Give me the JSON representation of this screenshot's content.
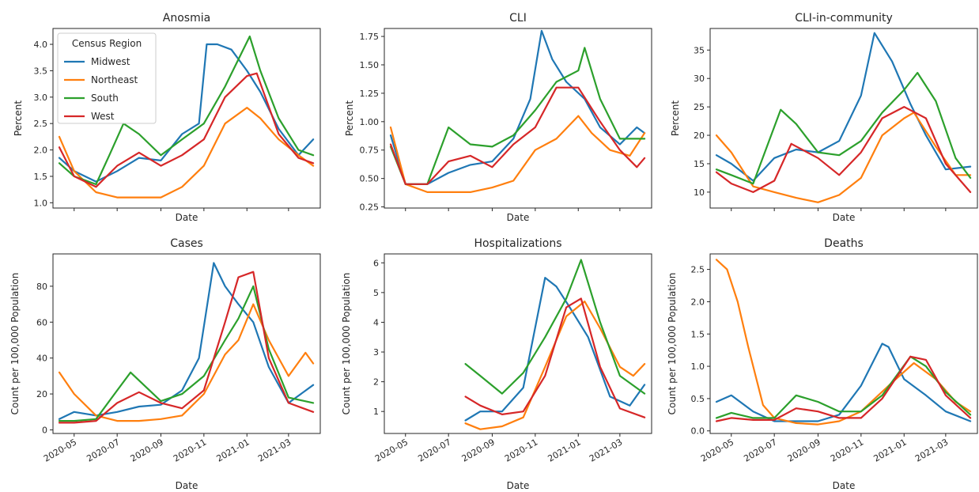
{
  "colors": {
    "Midwest": "#1f77b4",
    "Northeast": "#ff7f0e",
    "South": "#2ca02c",
    "West": "#d62728"
  },
  "legend": {
    "title": "Census Region",
    "placement": "upper-left of first panel",
    "entries": [
      "Midwest",
      "Northeast",
      "South",
      "West"
    ]
  },
  "x_ticks": [
    "2020-05",
    "2020-07",
    "2020-09",
    "2020-11",
    "2021-01",
    "2021-03"
  ],
  "chart_data": [
    {
      "type": "line",
      "title": "Anosmia",
      "xlabel": "Date",
      "ylabel": "Percent",
      "ylim": [
        0.9,
        4.3
      ],
      "yticks": [
        1.0,
        1.5,
        2.0,
        2.5,
        3.0,
        3.5,
        4.0
      ],
      "xlim": [
        "2020-04-01",
        "2021-04-15"
      ],
      "show_xticklabels": false,
      "grid": false,
      "series": [
        {
          "name": "Midwest",
          "x": [
            "2020-04-10",
            "2020-05-01",
            "2020-06-01",
            "2020-07-01",
            "2020-08-01",
            "2020-09-01",
            "2020-10-01",
            "2020-10-25",
            "2020-11-05",
            "2020-11-20",
            "2020-12-10",
            "2021-01-01",
            "2021-01-20",
            "2021-02-15",
            "2021-03-15",
            "2021-04-05"
          ],
          "values": [
            1.85,
            1.6,
            1.4,
            1.6,
            1.85,
            1.8,
            2.3,
            2.5,
            4.0,
            4.0,
            3.9,
            3.5,
            3.1,
            2.4,
            1.9,
            2.2
          ]
        },
        {
          "name": "Northeast",
          "x": [
            "2020-04-10",
            "2020-05-01",
            "2020-06-01",
            "2020-07-01",
            "2020-08-01",
            "2020-09-01",
            "2020-10-01",
            "2020-11-01",
            "2020-12-01",
            "2021-01-01",
            "2021-01-20",
            "2021-02-15",
            "2021-03-15",
            "2021-04-05"
          ],
          "values": [
            2.25,
            1.6,
            1.2,
            1.1,
            1.1,
            1.1,
            1.3,
            1.7,
            2.5,
            2.8,
            2.6,
            2.2,
            1.9,
            1.7
          ]
        },
        {
          "name": "South",
          "x": [
            "2020-04-10",
            "2020-05-01",
            "2020-06-01",
            "2020-06-20",
            "2020-07-10",
            "2020-08-01",
            "2020-09-01",
            "2020-10-01",
            "2020-11-01",
            "2020-12-01",
            "2021-01-05",
            "2021-01-20",
            "2021-02-15",
            "2021-03-15",
            "2021-04-05"
          ],
          "values": [
            1.75,
            1.5,
            1.35,
            1.9,
            2.5,
            2.3,
            1.9,
            2.2,
            2.5,
            3.2,
            4.15,
            3.5,
            2.6,
            2.0,
            1.9
          ]
        },
        {
          "name": "West",
          "x": [
            "2020-04-10",
            "2020-05-01",
            "2020-06-01",
            "2020-07-01",
            "2020-08-01",
            "2020-09-01",
            "2020-10-01",
            "2020-11-01",
            "2020-12-01",
            "2021-01-01",
            "2021-01-15",
            "2021-02-15",
            "2021-03-15",
            "2021-04-05"
          ],
          "values": [
            2.05,
            1.5,
            1.3,
            1.7,
            1.95,
            1.7,
            1.9,
            2.2,
            3.0,
            3.4,
            3.45,
            2.3,
            1.85,
            1.75
          ]
        }
      ]
    },
    {
      "type": "line",
      "title": "CLI",
      "xlabel": "Date",
      "ylabel": "Percent",
      "ylim": [
        0.24,
        1.82
      ],
      "yticks": [
        0.25,
        0.5,
        0.75,
        1.0,
        1.25,
        1.5,
        1.75
      ],
      "xlim": [
        "2020-04-01",
        "2021-04-15"
      ],
      "show_xticklabels": false,
      "grid": false,
      "series": [
        {
          "name": "Midwest",
          "x": [
            "2020-04-10",
            "2020-05-01",
            "2020-06-01",
            "2020-07-01",
            "2020-08-01",
            "2020-09-01",
            "2020-10-01",
            "2020-10-25",
            "2020-11-10",
            "2020-11-25",
            "2020-12-15",
            "2021-01-10",
            "2021-02-01",
            "2021-03-01",
            "2021-03-25",
            "2021-04-05"
          ],
          "values": [
            0.88,
            0.45,
            0.45,
            0.55,
            0.62,
            0.65,
            0.85,
            1.2,
            1.8,
            1.55,
            1.35,
            1.2,
            0.95,
            0.8,
            0.95,
            0.9
          ]
        },
        {
          "name": "Northeast",
          "x": [
            "2020-04-10",
            "2020-05-01",
            "2020-06-01",
            "2020-07-01",
            "2020-08-01",
            "2020-09-01",
            "2020-10-01",
            "2020-11-01",
            "2020-12-01",
            "2021-01-01",
            "2021-01-20",
            "2021-02-15",
            "2021-03-15",
            "2021-04-05"
          ],
          "values": [
            0.95,
            0.45,
            0.38,
            0.38,
            0.38,
            0.42,
            0.48,
            0.75,
            0.85,
            1.05,
            0.9,
            0.75,
            0.7,
            0.9
          ]
        },
        {
          "name": "South",
          "x": [
            "2020-04-10",
            "2020-05-01",
            "2020-06-01",
            "2020-07-01",
            "2020-08-01",
            "2020-09-01",
            "2020-10-01",
            "2020-11-01",
            "2020-12-01",
            "2021-01-01",
            "2021-01-10",
            "2021-02-01",
            "2021-03-01",
            "2021-04-05"
          ],
          "values": [
            0.78,
            0.45,
            0.45,
            0.95,
            0.8,
            0.78,
            0.88,
            1.1,
            1.35,
            1.45,
            1.65,
            1.2,
            0.85,
            0.85
          ]
        },
        {
          "name": "West",
          "x": [
            "2020-04-10",
            "2020-05-01",
            "2020-06-01",
            "2020-07-01",
            "2020-08-01",
            "2020-09-01",
            "2020-10-01",
            "2020-11-01",
            "2020-12-01",
            "2021-01-01",
            "2021-02-01",
            "2021-03-01",
            "2021-03-25",
            "2021-04-05"
          ],
          "values": [
            0.8,
            0.45,
            0.45,
            0.65,
            0.7,
            0.6,
            0.8,
            0.95,
            1.3,
            1.3,
            1.0,
            0.75,
            0.6,
            0.68
          ]
        }
      ]
    },
    {
      "type": "line",
      "title": "CLI-in-community",
      "xlabel": "Date",
      "ylabel": "Percent",
      "ylim": [
        7.2,
        38.8
      ],
      "yticks": [
        10,
        15,
        20,
        25,
        30,
        35
      ],
      "xlim": [
        "2020-04-01",
        "2021-04-15"
      ],
      "show_xticklabels": false,
      "grid": false,
      "series": [
        {
          "name": "Midwest",
          "x": [
            "2020-04-10",
            "2020-05-01",
            "2020-06-01",
            "2020-07-01",
            "2020-08-01",
            "2020-09-01",
            "2020-10-01",
            "2020-11-01",
            "2020-11-20",
            "2020-12-15",
            "2021-01-10",
            "2021-02-01",
            "2021-03-01",
            "2021-04-05"
          ],
          "values": [
            16.5,
            15.0,
            12.0,
            16.0,
            17.5,
            17.0,
            19.0,
            27.0,
            38.0,
            33.0,
            25.5,
            20.0,
            14.0,
            14.5
          ]
        },
        {
          "name": "Northeast",
          "x": [
            "2020-04-10",
            "2020-05-01",
            "2020-06-01",
            "2020-07-01",
            "2020-08-01",
            "2020-09-01",
            "2020-10-01",
            "2020-11-01",
            "2020-12-01",
            "2021-01-01",
            "2021-01-15",
            "2021-02-15",
            "2021-03-15",
            "2021-04-05"
          ],
          "values": [
            20.0,
            17.0,
            11.0,
            10.0,
            9.0,
            8.2,
            9.5,
            12.5,
            20.0,
            23.0,
            24.0,
            18.0,
            13.0,
            13.0
          ]
        },
        {
          "name": "South",
          "x": [
            "2020-04-10",
            "2020-05-01",
            "2020-06-01",
            "2020-07-10",
            "2020-08-01",
            "2020-09-01",
            "2020-10-01",
            "2020-11-01",
            "2020-12-01",
            "2021-01-01",
            "2021-01-20",
            "2021-02-15",
            "2021-03-15",
            "2021-04-05"
          ],
          "values": [
            14.0,
            13.0,
            11.5,
            24.5,
            22.0,
            17.0,
            16.5,
            19.0,
            24.0,
            28.0,
            31.0,
            26.0,
            16.0,
            12.5
          ]
        },
        {
          "name": "West",
          "x": [
            "2020-04-10",
            "2020-05-01",
            "2020-06-01",
            "2020-07-01",
            "2020-07-25",
            "2020-09-01",
            "2020-10-01",
            "2020-11-01",
            "2020-12-01",
            "2021-01-01",
            "2021-02-01",
            "2021-03-01",
            "2021-04-05"
          ],
          "values": [
            13.5,
            11.5,
            10.0,
            12.0,
            18.5,
            16.0,
            13.0,
            17.0,
            23.0,
            25.0,
            23.0,
            15.0,
            10.0
          ]
        }
      ]
    },
    {
      "type": "line",
      "title": "Cases",
      "xlabel": "Date",
      "ylabel": "Count per 100,000 Population",
      "ylim": [
        -2,
        98
      ],
      "yticks": [
        0,
        20,
        40,
        60,
        80
      ],
      "xlim": [
        "2020-04-01",
        "2021-04-15"
      ],
      "show_xticklabels": true,
      "grid": false,
      "series": [
        {
          "name": "Midwest",
          "x": [
            "2020-04-10",
            "2020-05-01",
            "2020-06-01",
            "2020-07-01",
            "2020-08-01",
            "2020-09-01",
            "2020-10-01",
            "2020-10-25",
            "2020-11-15",
            "2020-12-01",
            "2020-12-20",
            "2021-01-10",
            "2021-02-01",
            "2021-03-01",
            "2021-04-05"
          ],
          "values": [
            6,
            10,
            8,
            10,
            13,
            14,
            22,
            40,
            93,
            80,
            70,
            60,
            35,
            15,
            25
          ]
        },
        {
          "name": "Northeast",
          "x": [
            "2020-04-10",
            "2020-05-01",
            "2020-06-01",
            "2020-07-01",
            "2020-08-01",
            "2020-09-01",
            "2020-10-01",
            "2020-11-01",
            "2020-12-01",
            "2020-12-20",
            "2021-01-10",
            "2021-02-01",
            "2021-03-01",
            "2021-03-25",
            "2021-04-05"
          ],
          "values": [
            32,
            20,
            8,
            5,
            5,
            6,
            8,
            20,
            42,
            50,
            70,
            50,
            30,
            43,
            37
          ]
        },
        {
          "name": "South",
          "x": [
            "2020-04-10",
            "2020-05-01",
            "2020-06-01",
            "2020-07-01",
            "2020-07-20",
            "2020-09-01",
            "2020-10-01",
            "2020-11-01",
            "2020-12-01",
            "2020-12-20",
            "2021-01-10",
            "2021-02-01",
            "2021-03-01",
            "2021-04-05"
          ],
          "values": [
            5,
            5,
            6,
            22,
            32,
            16,
            20,
            30,
            50,
            62,
            80,
            45,
            18,
            15
          ]
        },
        {
          "name": "West",
          "x": [
            "2020-04-10",
            "2020-05-01",
            "2020-06-01",
            "2020-07-01",
            "2020-08-01",
            "2020-09-01",
            "2020-10-01",
            "2020-11-01",
            "2020-12-01",
            "2020-12-20",
            "2021-01-10",
            "2021-02-01",
            "2021-03-01",
            "2021-04-05"
          ],
          "values": [
            4,
            4,
            5,
            15,
            21,
            15,
            12,
            22,
            60,
            85,
            88,
            40,
            15,
            10
          ]
        }
      ]
    },
    {
      "type": "line",
      "title": "Hospitalizations",
      "xlabel": "Date",
      "ylabel": "Count per 100,000 Population",
      "ylim": [
        0.26,
        6.3
      ],
      "yticks": [
        1,
        2,
        3,
        4,
        5,
        6
      ],
      "xlim": [
        "2020-04-01",
        "2021-04-15"
      ],
      "show_xticklabels": true,
      "grid": false,
      "series": [
        {
          "name": "Midwest",
          "x": [
            "2020-07-25",
            "2020-08-15",
            "2020-09-15",
            "2020-10-15",
            "2020-11-15",
            "2020-12-01",
            "2020-12-20",
            "2021-01-15",
            "2021-02-15",
            "2021-03-15",
            "2021-04-05"
          ],
          "values": [
            0.7,
            1.0,
            1.0,
            1.8,
            5.5,
            5.2,
            4.5,
            3.5,
            1.5,
            1.2,
            1.9
          ]
        },
        {
          "name": "Northeast",
          "x": [
            "2020-07-25",
            "2020-08-15",
            "2020-09-15",
            "2020-10-15",
            "2020-11-15",
            "2020-12-15",
            "2021-01-10",
            "2021-02-01",
            "2021-03-01",
            "2021-03-20",
            "2021-04-05"
          ],
          "values": [
            0.6,
            0.4,
            0.5,
            0.8,
            2.5,
            4.2,
            4.7,
            3.8,
            2.5,
            2.2,
            2.6
          ]
        },
        {
          "name": "South",
          "x": [
            "2020-07-25",
            "2020-08-15",
            "2020-09-15",
            "2020-10-15",
            "2020-11-15",
            "2020-12-15",
            "2021-01-05",
            "2021-02-01",
            "2021-03-01",
            "2021-04-05"
          ],
          "values": [
            2.6,
            2.2,
            1.6,
            2.3,
            3.5,
            4.8,
            6.1,
            4.0,
            2.2,
            1.6
          ]
        },
        {
          "name": "West",
          "x": [
            "2020-07-25",
            "2020-08-15",
            "2020-09-15",
            "2020-10-15",
            "2020-11-15",
            "2020-12-15",
            "2021-01-05",
            "2021-02-01",
            "2021-03-01",
            "2021-04-05"
          ],
          "values": [
            1.5,
            1.2,
            0.9,
            1.0,
            2.2,
            4.5,
            4.8,
            2.5,
            1.1,
            0.8
          ]
        }
      ]
    },
    {
      "type": "line",
      "title": "Deaths",
      "xlabel": "Date",
      "ylabel": "Count per 100,000 Population",
      "ylim": [
        -0.04,
        2.74
      ],
      "yticks": [
        0.0,
        0.5,
        1.0,
        1.5,
        2.0,
        2.5
      ],
      "xlim": [
        "2020-04-01",
        "2021-04-15"
      ],
      "show_xticklabels": true,
      "grid": false,
      "series": [
        {
          "name": "Midwest",
          "x": [
            "2020-04-10",
            "2020-05-01",
            "2020-06-01",
            "2020-07-01",
            "2020-08-01",
            "2020-09-01",
            "2020-10-01",
            "2020-11-01",
            "2020-12-01",
            "2020-12-10",
            "2021-01-01",
            "2021-02-01",
            "2021-03-01",
            "2021-04-05"
          ],
          "values": [
            0.45,
            0.55,
            0.3,
            0.15,
            0.15,
            0.15,
            0.25,
            0.7,
            1.35,
            1.3,
            0.8,
            0.55,
            0.3,
            0.15
          ]
        },
        {
          "name": "Northeast",
          "x": [
            "2020-04-10",
            "2020-04-25",
            "2020-05-10",
            "2020-05-25",
            "2020-06-15",
            "2020-07-01",
            "2020-08-01",
            "2020-09-01",
            "2020-10-01",
            "2020-11-01",
            "2020-12-15",
            "2021-01-15",
            "2021-02-15",
            "2021-03-15",
            "2021-04-05"
          ],
          "values": [
            2.65,
            2.5,
            2.0,
            1.3,
            0.4,
            0.2,
            0.12,
            0.1,
            0.15,
            0.3,
            0.75,
            1.05,
            0.8,
            0.45,
            0.3
          ]
        },
        {
          "name": "South",
          "x": [
            "2020-04-10",
            "2020-05-01",
            "2020-06-01",
            "2020-07-01",
            "2020-08-01",
            "2020-09-01",
            "2020-10-01",
            "2020-11-01",
            "2020-12-01",
            "2021-01-10",
            "2021-02-01",
            "2021-03-01",
            "2021-04-05"
          ],
          "values": [
            0.2,
            0.28,
            0.2,
            0.2,
            0.55,
            0.45,
            0.3,
            0.3,
            0.55,
            1.15,
            1.0,
            0.6,
            0.25
          ]
        },
        {
          "name": "West",
          "x": [
            "2020-04-10",
            "2020-05-01",
            "2020-06-01",
            "2020-07-01",
            "2020-08-01",
            "2020-09-01",
            "2020-10-01",
            "2020-11-01",
            "2020-12-01",
            "2021-01-10",
            "2021-02-01",
            "2021-03-01",
            "2021-04-05"
          ],
          "values": [
            0.15,
            0.2,
            0.17,
            0.17,
            0.35,
            0.3,
            0.2,
            0.2,
            0.5,
            1.15,
            1.1,
            0.55,
            0.2
          ]
        }
      ]
    }
  ]
}
